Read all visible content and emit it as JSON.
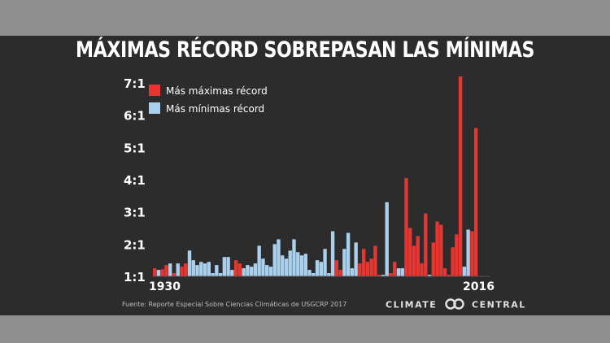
{
  "title": "MÁXIMAS RÉCORD SOBREPASAN LAS MÍNIMAS",
  "source": "Fuente: Reporte Especial Sobre Ciencias Climáticas de USGCRP 2017",
  "logo": {
    "left": "CLIMATE",
    "right": "CENTRAL"
  },
  "colors": {
    "max": "#e8352f",
    "min": "#a9d0ec",
    "background": "#2c2c2c"
  },
  "chart_data": {
    "type": "bar",
    "title": "MÁXIMAS RÉCORD SOBREPASAN LAS MÍNIMAS",
    "xlabel": "",
    "ylabel": "",
    "x_labels_shown": [
      "1930",
      "2016"
    ],
    "x": [
      1930,
      1931,
      1932,
      1933,
      1934,
      1935,
      1936,
      1937,
      1938,
      1939,
      1940,
      1941,
      1942,
      1943,
      1944,
      1945,
      1946,
      1947,
      1948,
      1949,
      1950,
      1951,
      1952,
      1953,
      1954,
      1955,
      1956,
      1957,
      1958,
      1959,
      1960,
      1961,
      1962,
      1963,
      1964,
      1965,
      1966,
      1967,
      1968,
      1969,
      1970,
      1971,
      1972,
      1973,
      1974,
      1975,
      1976,
      1977,
      1978,
      1979,
      1980,
      1981,
      1982,
      1983,
      1984,
      1985,
      1986,
      1987,
      1988,
      1989,
      1990,
      1991,
      1992,
      1993,
      1994,
      1995,
      1996,
      1997,
      1998,
      1999,
      2000,
      2001,
      2002,
      2003,
      2004,
      2005,
      2006,
      2007,
      2008,
      2009,
      2010,
      2011,
      2012,
      2013,
      2014,
      2015,
      2016
    ],
    "y_ticks": [
      "1:1",
      "2:1",
      "3:1",
      "4:1",
      "5:1",
      "6:1",
      "7:1"
    ],
    "ylim": [
      1,
      7.3
    ],
    "series": [
      {
        "name": "Más máximas récord",
        "color": "#e8352f"
      },
      {
        "name": "Más mínimas récord",
        "color": "#a9d0ec"
      }
    ],
    "legend_position": "top-left",
    "bars": [
      {
        "year": 1930,
        "ratio": 1.25,
        "type": "max"
      },
      {
        "year": 1931,
        "ratio": 1.2,
        "type": "min"
      },
      {
        "year": 1932,
        "ratio": 1.22,
        "type": "max"
      },
      {
        "year": 1933,
        "ratio": 1.35,
        "type": "max"
      },
      {
        "year": 1934,
        "ratio": 1.4,
        "type": "min"
      },
      {
        "year": 1935,
        "ratio": 1.1,
        "type": "max"
      },
      {
        "year": 1936,
        "ratio": 1.4,
        "type": "min"
      },
      {
        "year": 1937,
        "ratio": 1.3,
        "type": "max"
      },
      {
        "year": 1938,
        "ratio": 1.4,
        "type": "max"
      },
      {
        "year": 1939,
        "ratio": 1.8,
        "type": "min"
      },
      {
        "year": 1940,
        "ratio": 1.5,
        "type": "min"
      },
      {
        "year": 1941,
        "ratio": 1.35,
        "type": "min"
      },
      {
        "year": 1942,
        "ratio": 1.45,
        "type": "min"
      },
      {
        "year": 1943,
        "ratio": 1.4,
        "type": "min"
      },
      {
        "year": 1944,
        "ratio": 1.45,
        "type": "min"
      },
      {
        "year": 1945,
        "ratio": 1.1,
        "type": "min"
      },
      {
        "year": 1946,
        "ratio": 1.35,
        "type": "min"
      },
      {
        "year": 1947,
        "ratio": 1.1,
        "type": "min"
      },
      {
        "year": 1948,
        "ratio": 1.6,
        "type": "min"
      },
      {
        "year": 1949,
        "ratio": 1.6,
        "type": "min"
      },
      {
        "year": 1950,
        "ratio": 1.2,
        "type": "min"
      },
      {
        "year": 1951,
        "ratio": 1.5,
        "type": "max"
      },
      {
        "year": 1952,
        "ratio": 1.4,
        "type": "max"
      },
      {
        "year": 1953,
        "ratio": 1.25,
        "type": "min"
      },
      {
        "year": 1954,
        "ratio": 1.35,
        "type": "min"
      },
      {
        "year": 1955,
        "ratio": 1.3,
        "type": "min"
      },
      {
        "year": 1956,
        "ratio": 1.4,
        "type": "min"
      },
      {
        "year": 1957,
        "ratio": 1.95,
        "type": "min"
      },
      {
        "year": 1958,
        "ratio": 1.55,
        "type": "min"
      },
      {
        "year": 1959,
        "ratio": 1.35,
        "type": "min"
      },
      {
        "year": 1960,
        "ratio": 1.3,
        "type": "min"
      },
      {
        "year": 1961,
        "ratio": 2.0,
        "type": "min"
      },
      {
        "year": 1962,
        "ratio": 2.15,
        "type": "min"
      },
      {
        "year": 1963,
        "ratio": 1.65,
        "type": "min"
      },
      {
        "year": 1964,
        "ratio": 1.55,
        "type": "min"
      },
      {
        "year": 1965,
        "ratio": 1.8,
        "type": "min"
      },
      {
        "year": 1966,
        "ratio": 2.15,
        "type": "min"
      },
      {
        "year": 1967,
        "ratio": 1.75,
        "type": "min"
      },
      {
        "year": 1968,
        "ratio": 1.65,
        "type": "min"
      },
      {
        "year": 1969,
        "ratio": 1.7,
        "type": "min"
      },
      {
        "year": 1970,
        "ratio": 1.2,
        "type": "min"
      },
      {
        "year": 1971,
        "ratio": 1.1,
        "type": "min"
      },
      {
        "year": 1972,
        "ratio": 1.5,
        "type": "min"
      },
      {
        "year": 1973,
        "ratio": 1.45,
        "type": "min"
      },
      {
        "year": 1974,
        "ratio": 1.85,
        "type": "min"
      },
      {
        "year": 1975,
        "ratio": 1.1,
        "type": "min"
      },
      {
        "year": 1976,
        "ratio": 2.4,
        "type": "min"
      },
      {
        "year": 1977,
        "ratio": 1.5,
        "type": "max"
      },
      {
        "year": 1978,
        "ratio": 1.2,
        "type": "max"
      },
      {
        "year": 1979,
        "ratio": 1.85,
        "type": "min"
      },
      {
        "year": 1980,
        "ratio": 2.35,
        "type": "min"
      },
      {
        "year": 1981,
        "ratio": 1.25,
        "type": "min"
      },
      {
        "year": 1982,
        "ratio": 2.05,
        "type": "min"
      },
      {
        "year": 1983,
        "ratio": 1.4,
        "type": "max"
      },
      {
        "year": 1984,
        "ratio": 1.85,
        "type": "max"
      },
      {
        "year": 1985,
        "ratio": 1.45,
        "type": "max"
      },
      {
        "year": 1986,
        "ratio": 1.55,
        "type": "max"
      },
      {
        "year": 1987,
        "ratio": 1.95,
        "type": "max"
      },
      {
        "year": 1988,
        "ratio": 1.05,
        "type": "max"
      },
      {
        "year": 1989,
        "ratio": 1.05,
        "type": "min"
      },
      {
        "year": 1990,
        "ratio": 3.3,
        "type": "min"
      },
      {
        "year": 1991,
        "ratio": 1.1,
        "type": "max"
      },
      {
        "year": 1992,
        "ratio": 1.45,
        "type": "max"
      },
      {
        "year": 1993,
        "ratio": 1.25,
        "type": "min"
      },
      {
        "year": 1994,
        "ratio": 1.25,
        "type": "min"
      },
      {
        "year": 1995,
        "ratio": 4.05,
        "type": "max"
      },
      {
        "year": 1996,
        "ratio": 2.5,
        "type": "max"
      },
      {
        "year": 1997,
        "ratio": 1.95,
        "type": "max"
      },
      {
        "year": 1998,
        "ratio": 2.25,
        "type": "max"
      },
      {
        "year": 1999,
        "ratio": 1.4,
        "type": "max"
      },
      {
        "year": 2000,
        "ratio": 2.95,
        "type": "max"
      },
      {
        "year": 2001,
        "ratio": 1.05,
        "type": "min"
      },
      {
        "year": 2002,
        "ratio": 2.05,
        "type": "max"
      },
      {
        "year": 2003,
        "ratio": 2.7,
        "type": "max"
      },
      {
        "year": 2004,
        "ratio": 2.6,
        "type": "max"
      },
      {
        "year": 2005,
        "ratio": 1.25,
        "type": "max"
      },
      {
        "year": 2006,
        "ratio": 1.05,
        "type": "max"
      },
      {
        "year": 2007,
        "ratio": 1.9,
        "type": "max"
      },
      {
        "year": 2008,
        "ratio": 2.3,
        "type": "max"
      },
      {
        "year": 2009,
        "ratio": 7.2,
        "type": "max"
      },
      {
        "year": 2010,
        "ratio": 1.3,
        "type": "min"
      },
      {
        "year": 2011,
        "ratio": 2.45,
        "type": "min"
      },
      {
        "year": 2012,
        "ratio": 2.4,
        "type": "max"
      },
      {
        "year": 2013,
        "ratio": 5.6,
        "type": "max"
      }
    ]
  }
}
